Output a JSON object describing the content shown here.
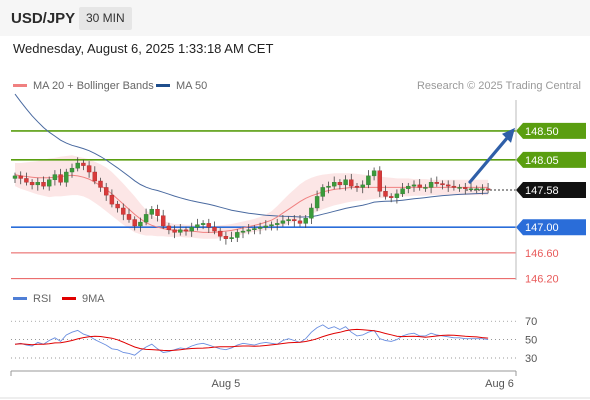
{
  "header": {
    "symbol": "USD/JPY",
    "timeframe": "30 MIN"
  },
  "datetime": "Wednesday, August 6, 2025 1:33:18 AM CET",
  "legend": {
    "ma20": {
      "label": "MA 20 + Bollinger Bands",
      "color": "#f08080"
    },
    "ma50": {
      "label": "MA 50",
      "color": "#1f4e8c"
    }
  },
  "research": "Research © 2025 Trading Central",
  "rsi_legend": {
    "rsi": {
      "label": "RSI",
      "color": "#4f7fd6"
    },
    "ma9": {
      "label": "9MA",
      "color": "#e00000"
    }
  },
  "chart_data": [
    {
      "type": "candlestick",
      "title": "",
      "ylim": [
        146.0,
        149.0
      ],
      "levels": [
        {
          "value": 148.5,
          "label": "148.50",
          "color": "#5a9e10",
          "kind": "resistance"
        },
        {
          "value": 148.05,
          "label": "148.05",
          "color": "#5a9e10",
          "kind": "resistance"
        },
        {
          "value": 147.58,
          "label": "147.58",
          "color": "#111111",
          "kind": "last-price"
        },
        {
          "value": 147.0,
          "label": "147.00",
          "color": "#2a6dd9",
          "kind": "pivot"
        },
        {
          "value": 146.6,
          "label": "146.60",
          "color": "#e85a5a",
          "kind": "support"
        },
        {
          "value": 146.2,
          "label": "146.20",
          "color": "#e85a5a",
          "kind": "support"
        }
      ],
      "x_labels": [
        {
          "index": 37,
          "label": "Aug 5"
        },
        {
          "index": 85,
          "label": "Aug 6"
        }
      ],
      "closes": [
        147.8,
        147.76,
        147.7,
        147.66,
        147.7,
        147.64,
        147.74,
        147.82,
        147.7,
        147.86,
        147.92,
        148.0,
        147.96,
        147.86,
        147.72,
        147.62,
        147.5,
        147.36,
        147.3,
        147.2,
        147.12,
        147.02,
        147.08,
        147.2,
        147.28,
        147.18,
        147.02,
        146.96,
        146.92,
        146.96,
        146.94,
        147.0,
        147.04,
        147.06,
        147.0,
        146.94,
        146.86,
        146.82,
        146.84,
        146.92,
        146.94,
        146.96,
        146.98,
        147.0,
        147.02,
        147.04,
        147.06,
        147.1,
        147.12,
        147.1,
        147.06,
        147.14,
        147.3,
        147.48,
        147.62,
        147.64,
        147.7,
        147.66,
        147.74,
        147.64,
        147.62,
        147.66,
        147.8,
        147.88,
        147.56,
        147.48,
        147.46,
        147.52,
        147.6,
        147.64,
        147.66,
        147.62,
        147.62,
        147.7,
        147.68,
        147.66,
        147.64,
        147.62,
        147.62,
        147.6,
        147.6,
        147.6,
        147.6,
        147.58
      ],
      "ma20": [
        147.82,
        147.8,
        147.79,
        147.78,
        147.77,
        147.77,
        147.77,
        147.78,
        147.79,
        147.8,
        147.81,
        147.8,
        147.78,
        147.75,
        147.7,
        147.65,
        147.59,
        147.52,
        147.44,
        147.36,
        147.28,
        147.2,
        147.13,
        147.07,
        147.03,
        147.0,
        146.98,
        146.96,
        146.95,
        146.95,
        146.94,
        146.94,
        146.93,
        146.92,
        146.92,
        146.92,
        146.93,
        146.94,
        146.95,
        146.97,
        146.99,
        147.01,
        147.03,
        147.05,
        147.08,
        147.11,
        147.16,
        147.22,
        147.28,
        147.34,
        147.4,
        147.45,
        147.49,
        147.52,
        147.55,
        147.57,
        147.59,
        147.6,
        147.61,
        147.62,
        147.62,
        147.62,
        147.62,
        147.62,
        147.62,
        147.62,
        147.62,
        147.62,
        147.62,
        147.62,
        147.62,
        147.62,
        147.62,
        147.62,
        147.62,
        147.62,
        147.62,
        147.62,
        147.62,
        147.62,
        147.62,
        147.62,
        147.62,
        147.62
      ],
      "band_width": [
        0.18,
        0.2,
        0.22,
        0.24,
        0.26,
        0.28,
        0.3,
        0.3,
        0.31,
        0.31,
        0.31,
        0.3,
        0.3,
        0.31,
        0.32,
        0.33,
        0.34,
        0.34,
        0.33,
        0.32,
        0.3,
        0.28,
        0.24,
        0.2,
        0.16,
        0.14,
        0.12,
        0.11,
        0.1,
        0.1,
        0.1,
        0.1,
        0.1,
        0.1,
        0.1,
        0.1,
        0.1,
        0.1,
        0.1,
        0.1,
        0.1,
        0.1,
        0.1,
        0.11,
        0.12,
        0.14,
        0.17,
        0.2,
        0.23,
        0.25,
        0.27,
        0.28,
        0.28,
        0.28,
        0.27,
        0.26,
        0.25,
        0.24,
        0.23,
        0.22,
        0.21,
        0.2,
        0.19,
        0.18,
        0.17,
        0.16,
        0.15,
        0.14,
        0.14,
        0.14,
        0.13,
        0.13,
        0.13,
        0.12,
        0.12,
        0.12,
        0.12,
        0.12,
        0.12,
        0.12,
        0.12,
        0.12,
        0.12,
        0.12
      ],
      "ma50_start": 149.2,
      "projection": {
        "from": 147.58,
        "to": 148.5
      }
    },
    {
      "type": "line",
      "title": "",
      "ylim": [
        10,
        80
      ],
      "y_ticks": [
        {
          "value": 70,
          "label": "70"
        },
        {
          "value": 50,
          "label": "50"
        },
        {
          "value": 30,
          "label": "30"
        }
      ],
      "rsi": [
        45,
        46,
        44,
        43,
        47,
        45,
        49,
        52,
        48,
        55,
        58,
        60,
        56,
        54,
        50,
        47,
        44,
        40,
        39,
        36,
        35,
        33,
        38,
        42,
        45,
        40,
        36,
        37,
        39,
        41,
        40,
        43,
        45,
        46,
        44,
        42,
        40,
        39,
        41,
        44,
        46,
        45,
        44,
        46,
        47,
        46,
        45,
        49,
        51,
        49,
        47,
        51,
        58,
        63,
        66,
        62,
        64,
        61,
        64,
        58,
        54,
        55,
        58,
        60,
        51,
        49,
        48,
        50,
        54,
        56,
        57,
        54,
        54,
        57,
        55,
        54,
        53,
        52,
        52,
        51,
        51,
        51,
        51,
        50
      ]
    }
  ]
}
